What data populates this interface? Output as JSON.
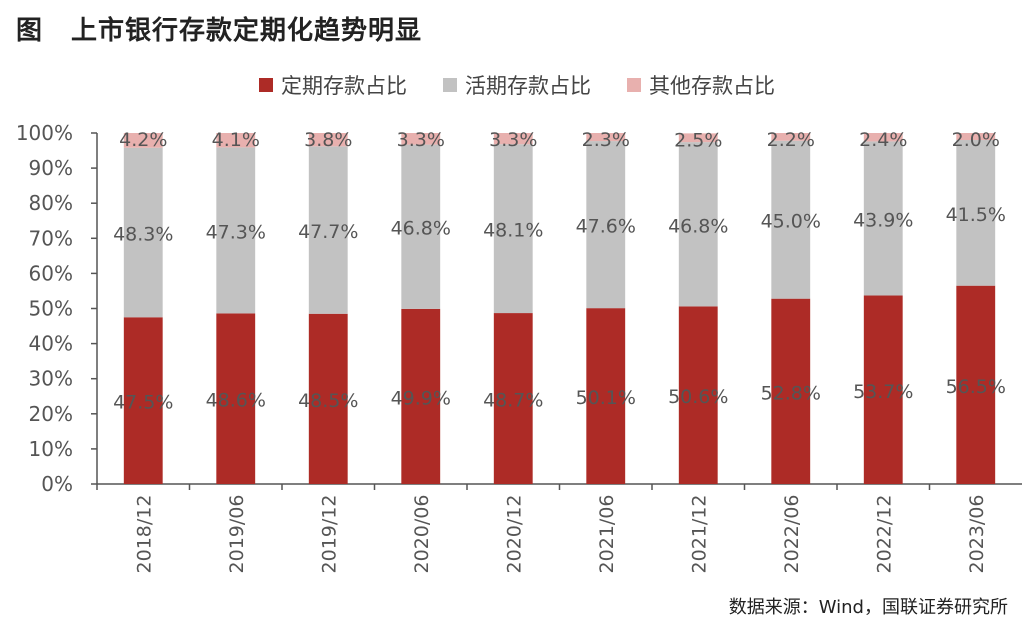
{
  "title": {
    "prefix": "图",
    "text": "上市银行存款定期化趋势明显"
  },
  "source": "数据来源：Wind，国联证券研究所",
  "colors": {
    "fixed": "#ad2b26",
    "demand": "#c2c2c2",
    "other": "#e8b0ae",
    "axis": "#555555"
  },
  "chart_data": {
    "type": "bar",
    "stacked": true,
    "categories": [
      "2018/12",
      "2019/06",
      "2019/12",
      "2020/06",
      "2020/12",
      "2021/06",
      "2021/12",
      "2022/06",
      "2022/12",
      "2023/06"
    ],
    "series": [
      {
        "name": "定期存款占比",
        "values": [
          47.5,
          48.6,
          48.5,
          49.9,
          48.7,
          50.1,
          50.6,
          52.8,
          53.7,
          56.5
        ],
        "labels": [
          "47.5%",
          "48.6%",
          "48.5%",
          "49.9%",
          "48.7%",
          "50.1%",
          "50.6%",
          "52.8%",
          "53.7%",
          "56.5%"
        ]
      },
      {
        "name": "活期存款占比",
        "values": [
          48.3,
          47.3,
          47.7,
          46.8,
          48.1,
          47.6,
          46.8,
          45.0,
          43.9,
          41.5
        ],
        "labels": [
          "48.3%",
          "47.3%",
          "47.7%",
          "46.8%",
          "48.1%",
          "47.6%",
          "46.8%",
          "45.0%",
          "43.9%",
          "41.5%"
        ]
      },
      {
        "name": "其他存款占比",
        "values": [
          4.2,
          4.1,
          3.8,
          3.3,
          3.3,
          2.3,
          2.5,
          2.2,
          2.4,
          2.0
        ],
        "labels": [
          "4.2%",
          "4.1%",
          "3.8%",
          "3.3%",
          "3.3%",
          "2.3%",
          "2.5%",
          "2.2%",
          "2.4%",
          "2.0%"
        ]
      }
    ],
    "ylim": [
      0,
      100
    ],
    "yticks": [
      "0%",
      "10%",
      "20%",
      "30%",
      "40%",
      "50%",
      "60%",
      "70%",
      "80%",
      "90%",
      "100%"
    ],
    "grid": false,
    "legend_position": "top"
  }
}
